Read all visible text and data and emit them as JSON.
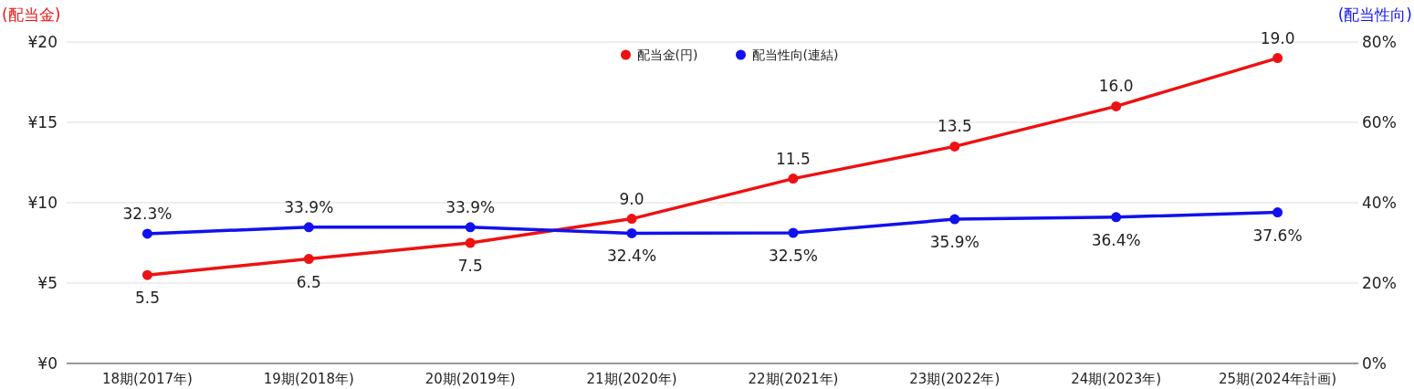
{
  "chart_data": {
    "type": "line",
    "ylabel": "(配当金)",
    "y2label": "(配当性向)",
    "categories": [
      "18期(2017年)",
      "19期(2018年)",
      "20期(2019年)",
      "21期(2020年)",
      "22期(2021年)",
      "23期(2022年)",
      "24期(2023年)",
      "25期(2024年計画)"
    ],
    "series": [
      {
        "name": "配当金(円)",
        "color": "#ee1111",
        "values": [
          5.5,
          6.5,
          7.5,
          9.0,
          11.5,
          13.5,
          16.0,
          19.0
        ],
        "value_labels": [
          "5.5",
          "6.5",
          "7.5",
          "9.0",
          "11.5",
          "13.5",
          "16.0",
          "19.0"
        ]
      },
      {
        "name": "配当性向(連結)",
        "color": "#1111ee",
        "axis": "y2",
        "values": [
          32.3,
          33.9,
          33.9,
          32.4,
          32.5,
          35.9,
          36.4,
          37.6
        ],
        "value_labels": [
          "32.3%",
          "33.9%",
          "33.9%",
          "32.4%",
          "32.5%",
          "35.9%",
          "36.4%",
          "37.6%"
        ]
      }
    ],
    "ylim": [
      0,
      20
    ],
    "yticks": [
      {
        "value": 0,
        "label": "¥0"
      },
      {
        "value": 5,
        "label": "¥5"
      },
      {
        "value": 10,
        "label": "¥10"
      },
      {
        "value": 15,
        "label": "¥15"
      },
      {
        "value": 20,
        "label": "¥20"
      }
    ],
    "y2lim": [
      0,
      80
    ],
    "y2ticks": [
      {
        "value": 0,
        "label": "0%"
      },
      {
        "value": 20,
        "label": "20%"
      },
      {
        "value": 40,
        "label": "40%"
      },
      {
        "value": 60,
        "label": "60%"
      },
      {
        "value": 80,
        "label": "80%"
      }
    ],
    "grid": "y",
    "legend": "top",
    "marker": "circle",
    "line_style": "solid"
  }
}
